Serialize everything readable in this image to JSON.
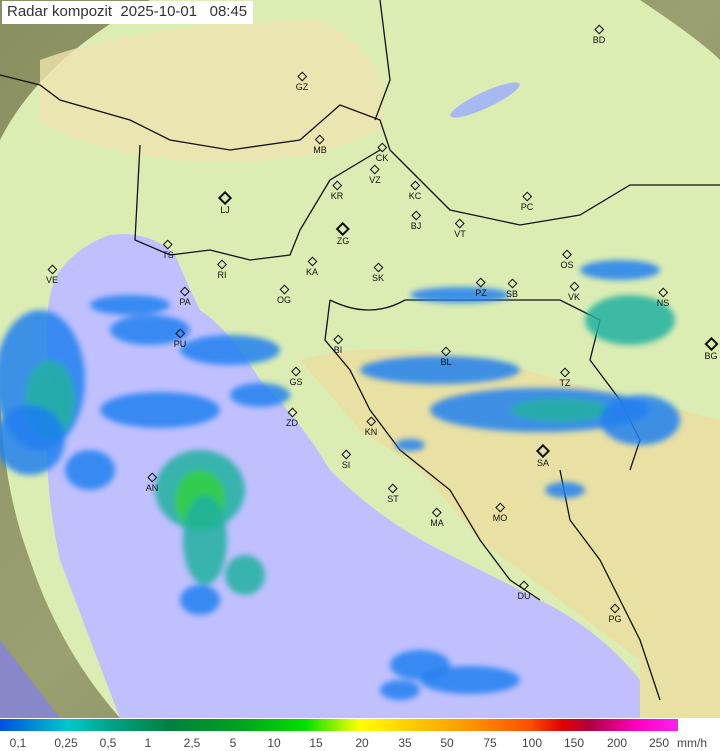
{
  "header": {
    "title": "Radar kompozit  2025-10-01   08:45"
  },
  "legend": {
    "labels": [
      "0,1",
      "0,25",
      "0,5",
      "1",
      "2,5",
      "5",
      "10",
      "15",
      "20",
      "35",
      "50",
      "75",
      "100",
      "150",
      "200",
      "250"
    ],
    "unit": "mm/h"
  },
  "map": {
    "colors": {
      "sea": "#c0c0ff",
      "coverage_land": "#d8ecb0",
      "outside": "#7a8a55",
      "rain_light": "#2080f0",
      "rain_mid": "#20b0a0",
      "rain_heavy": "#30d040"
    },
    "cities": [
      "BD",
      "GZ",
      "MB",
      "CK",
      "VZ",
      "KR",
      "KC",
      "PC",
      "LJ",
      "ZG",
      "BJ",
      "VT",
      "TS",
      "RI",
      "KA",
      "SK",
      "OS",
      "VE",
      "PA",
      "OG",
      "PZ",
      "SB",
      "VK",
      "NS",
      "PU",
      "BI",
      "BL",
      "BG",
      "GS",
      "TZ",
      "ZD",
      "KN",
      "SA",
      "SI",
      "AN",
      "ST",
      "MO",
      "MA",
      "DU",
      "PG"
    ]
  }
}
